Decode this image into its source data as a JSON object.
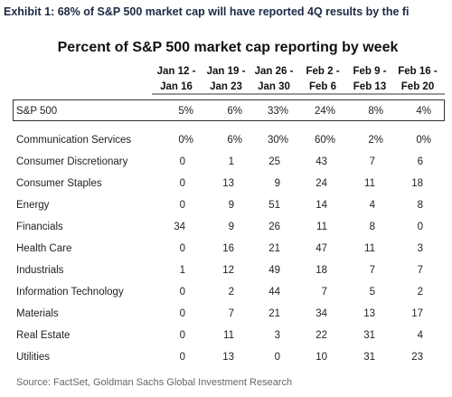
{
  "exhibit_title": "Exhibit 1: 68% of S&P 500 market cap will have reported 4Q results by the fi",
  "table": {
    "title": "Percent of S&P 500 market cap reporting by week",
    "columns": [
      [
        "Jan 12 -",
        "Jan 16"
      ],
      [
        "Jan 19 -",
        "Jan 23"
      ],
      [
        "Jan 26 -",
        "Jan 30"
      ],
      [
        "Feb 2 -",
        "Feb 6"
      ],
      [
        "Feb 9 -",
        "Feb 13"
      ],
      [
        "Feb 16 -",
        "Feb 20"
      ]
    ],
    "total_row": {
      "label": "S&P 500",
      "values": [
        "5%",
        "6%",
        "33%",
        "24%",
        "8%",
        "4%"
      ]
    },
    "rows": [
      {
        "label": "Communication Services",
        "values": [
          "0%",
          "6%",
          "30%",
          "60%",
          "2%",
          "0%"
        ]
      },
      {
        "label": "Consumer Discretionary",
        "values": [
          "0",
          "1",
          "25",
          "43",
          "7",
          "6"
        ]
      },
      {
        "label": "Consumer Staples",
        "values": [
          "0",
          "13",
          "9",
          "24",
          "11",
          "18"
        ]
      },
      {
        "label": "Energy",
        "values": [
          "0",
          "9",
          "51",
          "14",
          "4",
          "8"
        ]
      },
      {
        "label": "Financials",
        "values": [
          "34",
          "9",
          "26",
          "11",
          "8",
          "0"
        ]
      },
      {
        "label": "Health Care",
        "values": [
          "0",
          "16",
          "21",
          "47",
          "11",
          "3"
        ]
      },
      {
        "label": "Industrials",
        "values": [
          "1",
          "12",
          "49",
          "18",
          "7",
          "7"
        ]
      },
      {
        "label": "Information Technology",
        "values": [
          "0",
          "2",
          "44",
          "7",
          "5",
          "2"
        ]
      },
      {
        "label": "Materials",
        "values": [
          "0",
          "7",
          "21",
          "34",
          "13",
          "17"
        ]
      },
      {
        "label": "Real Estate",
        "values": [
          "0",
          "11",
          "3",
          "22",
          "31",
          "4"
        ]
      },
      {
        "label": "Utilities",
        "values": [
          "0",
          "13",
          "0",
          "10",
          "31",
          "23"
        ]
      }
    ]
  },
  "source": "Source: FactSet, Goldman Sachs Global Investment Research"
}
